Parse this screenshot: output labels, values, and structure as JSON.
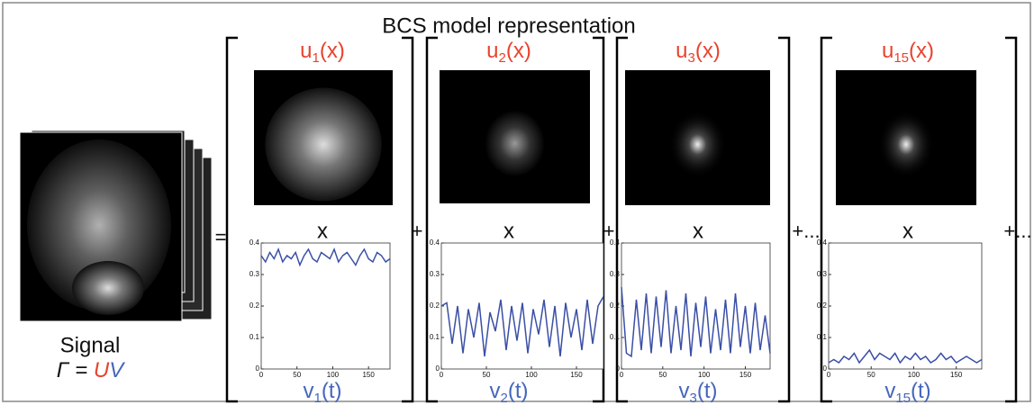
{
  "title": "BCS model representation",
  "signal": {
    "label": "Signal",
    "equation": {
      "gamma": "Γ",
      "equals": "=",
      "u": "U",
      "v": "V"
    }
  },
  "operators": [
    "=",
    "+",
    "+",
    "+...",
    "+..."
  ],
  "components": [
    {
      "u_label": {
        "base": "u",
        "sub": "1",
        "arg": "(x)"
      },
      "times": "x",
      "v_label": {
        "base": "v",
        "sub": "1",
        "arg": "(t)"
      },
      "plot": {
        "type": "line",
        "xlim": [
          0,
          180
        ],
        "ylim": [
          0,
          0.4
        ],
        "xticks": [
          0,
          50,
          100,
          150
        ],
        "yticks": [
          0,
          0.1,
          0.2,
          0.3,
          0.4
        ],
        "x": [
          0,
          6,
          12,
          18,
          24,
          30,
          36,
          42,
          48,
          54,
          60,
          66,
          72,
          78,
          84,
          90,
          96,
          102,
          108,
          114,
          120,
          126,
          132,
          138,
          144,
          150,
          156,
          162,
          168,
          174,
          180
        ],
        "values": [
          0.36,
          0.34,
          0.37,
          0.35,
          0.38,
          0.34,
          0.36,
          0.35,
          0.37,
          0.33,
          0.36,
          0.38,
          0.35,
          0.34,
          0.37,
          0.36,
          0.35,
          0.38,
          0.34,
          0.36,
          0.37,
          0.35,
          0.33,
          0.36,
          0.38,
          0.35,
          0.34,
          0.37,
          0.36,
          0.34,
          0.35
        ]
      }
    },
    {
      "u_label": {
        "base": "u",
        "sub": "2",
        "arg": "(x)"
      },
      "times": "x",
      "v_label": {
        "base": "v",
        "sub": "2",
        "arg": "(t)"
      },
      "plot": {
        "type": "line",
        "xlim": [
          0,
          180
        ],
        "ylim": [
          0,
          0.4
        ],
        "xticks": [
          0,
          50,
          100,
          150
        ],
        "yticks": [
          0,
          0.1,
          0.2,
          0.3,
          0.4
        ],
        "x": [
          0,
          6,
          12,
          18,
          24,
          30,
          36,
          42,
          48,
          54,
          60,
          66,
          72,
          78,
          84,
          90,
          96,
          102,
          108,
          114,
          120,
          126,
          132,
          138,
          144,
          150,
          156,
          162,
          168,
          174,
          180
        ],
        "values": [
          0.2,
          0.21,
          0.08,
          0.2,
          0.05,
          0.19,
          0.1,
          0.21,
          0.04,
          0.18,
          0.12,
          0.22,
          0.06,
          0.2,
          0.09,
          0.21,
          0.05,
          0.19,
          0.11,
          0.22,
          0.07,
          0.2,
          0.04,
          0.21,
          0.1,
          0.19,
          0.06,
          0.22,
          0.08,
          0.2,
          0.23
        ]
      }
    },
    {
      "u_label": {
        "base": "u",
        "sub": "3",
        "arg": "(x)"
      },
      "times": "x",
      "v_label": {
        "base": "v",
        "sub": "3",
        "arg": "(t)"
      },
      "plot": {
        "type": "line",
        "xlim": [
          0,
          180
        ],
        "ylim": [
          0,
          0.4
        ],
        "xticks": [
          0,
          50,
          100,
          150
        ],
        "yticks": [
          0,
          0.1,
          0.2,
          0.3,
          0.4
        ],
        "x": [
          0,
          6,
          12,
          18,
          24,
          30,
          36,
          42,
          48,
          54,
          60,
          66,
          72,
          78,
          84,
          90,
          96,
          102,
          108,
          114,
          120,
          126,
          132,
          138,
          144,
          150,
          156,
          162,
          168,
          174,
          180
        ],
        "values": [
          0.26,
          0.05,
          0.04,
          0.22,
          0.06,
          0.24,
          0.05,
          0.23,
          0.07,
          0.25,
          0.05,
          0.2,
          0.06,
          0.24,
          0.04,
          0.21,
          0.07,
          0.23,
          0.05,
          0.19,
          0.06,
          0.22,
          0.05,
          0.24,
          0.07,
          0.2,
          0.05,
          0.21,
          0.06,
          0.17,
          0.05
        ]
      }
    },
    {
      "u_label": {
        "base": "u",
        "sub": "15",
        "arg": "(x)"
      },
      "times": "x",
      "v_label": {
        "base": "v",
        "sub": "15",
        "arg": "(t)"
      },
      "plot": {
        "type": "line",
        "xlim": [
          0,
          180
        ],
        "ylim": [
          0,
          0.4
        ],
        "xticks": [
          0,
          50,
          100,
          150
        ],
        "yticks": [
          0,
          0.1,
          0.2,
          0.3,
          0.4
        ],
        "x": [
          0,
          6,
          12,
          18,
          24,
          30,
          36,
          42,
          48,
          54,
          60,
          66,
          72,
          78,
          84,
          90,
          96,
          102,
          108,
          114,
          120,
          126,
          132,
          138,
          144,
          150,
          156,
          162,
          168,
          174,
          180
        ],
        "values": [
          0.02,
          0.03,
          0.02,
          0.04,
          0.03,
          0.05,
          0.02,
          0.04,
          0.06,
          0.03,
          0.05,
          0.04,
          0.03,
          0.05,
          0.02,
          0.04,
          0.03,
          0.05,
          0.03,
          0.04,
          0.02,
          0.03,
          0.05,
          0.03,
          0.04,
          0.02,
          0.03,
          0.04,
          0.03,
          0.02,
          0.03
        ]
      }
    }
  ]
}
